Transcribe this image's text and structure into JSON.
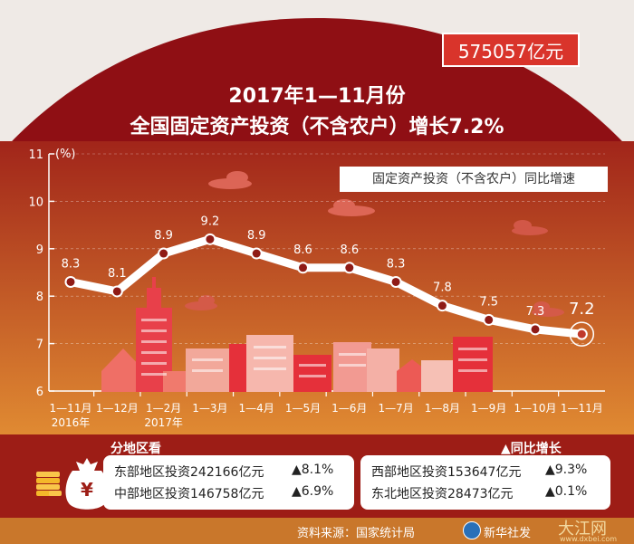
{
  "amount_badge": "575057亿元",
  "title": {
    "line1": "2017年1—11月份",
    "line2": "全国固定资产投资（不含农户）增长7.2%"
  },
  "chart_data": {
    "type": "line",
    "unit_label": "(%)",
    "legend": "固定资产投资（不含农户）同比增速",
    "ylim": [
      6,
      11
    ],
    "y_ticks": [
      "6",
      "7",
      "8",
      "9",
      "10",
      "11"
    ],
    "categories": [
      {
        "label": "1—11月",
        "sub": "2016年"
      },
      {
        "label": "1—12月",
        "sub": ""
      },
      {
        "label": "1—2月",
        "sub": "2017年"
      },
      {
        "label": "1—3月",
        "sub": ""
      },
      {
        "label": "1—4月",
        "sub": ""
      },
      {
        "label": "1—5月",
        "sub": ""
      },
      {
        "label": "1—6月",
        "sub": ""
      },
      {
        "label": "1—7月",
        "sub": ""
      },
      {
        "label": "1—8月",
        "sub": ""
      },
      {
        "label": "1—9月",
        "sub": ""
      },
      {
        "label": "1—10月",
        "sub": ""
      },
      {
        "label": "1—11月",
        "sub": ""
      }
    ],
    "values": [
      8.3,
      8.1,
      8.9,
      9.2,
      8.9,
      8.6,
      8.6,
      8.3,
      7.8,
      7.5,
      7.3,
      7.2
    ],
    "value_labels": [
      "8.3",
      "8.1",
      "8.9",
      "9.2",
      "8.9",
      "8.6",
      "8.6",
      "8.3",
      "7.8",
      "7.5",
      "7.3",
      "7.2"
    ],
    "grid": true
  },
  "regions": {
    "title": "分地区看",
    "growth_title": "▲同比增长",
    "left": [
      {
        "text": "东部地区投资242166亿元",
        "growth": "▲8.1%"
      },
      {
        "text": "中部地区投资146758亿元",
        "growth": "▲6.9%"
      }
    ],
    "right": [
      {
        "text": "西部地区投资153647亿元",
        "growth": "▲9.3%"
      },
      {
        "text": "东北地区投资28473亿元",
        "growth": "▲0.1%"
      }
    ]
  },
  "footer": {
    "source": "资料来源：国家统计局",
    "agency": "新华社发"
  },
  "watermark": {
    "text": "大江网",
    "url": "www.dxbei.com"
  },
  "colors": {
    "top_bg": "#efeae6",
    "arc_red": "#8f0f14",
    "plot_top": "#a1251a",
    "plot_bottom": "#e08a32",
    "bottom_band": "#9d1d16",
    "accent": "#d9342b",
    "line": "#ffffff"
  }
}
